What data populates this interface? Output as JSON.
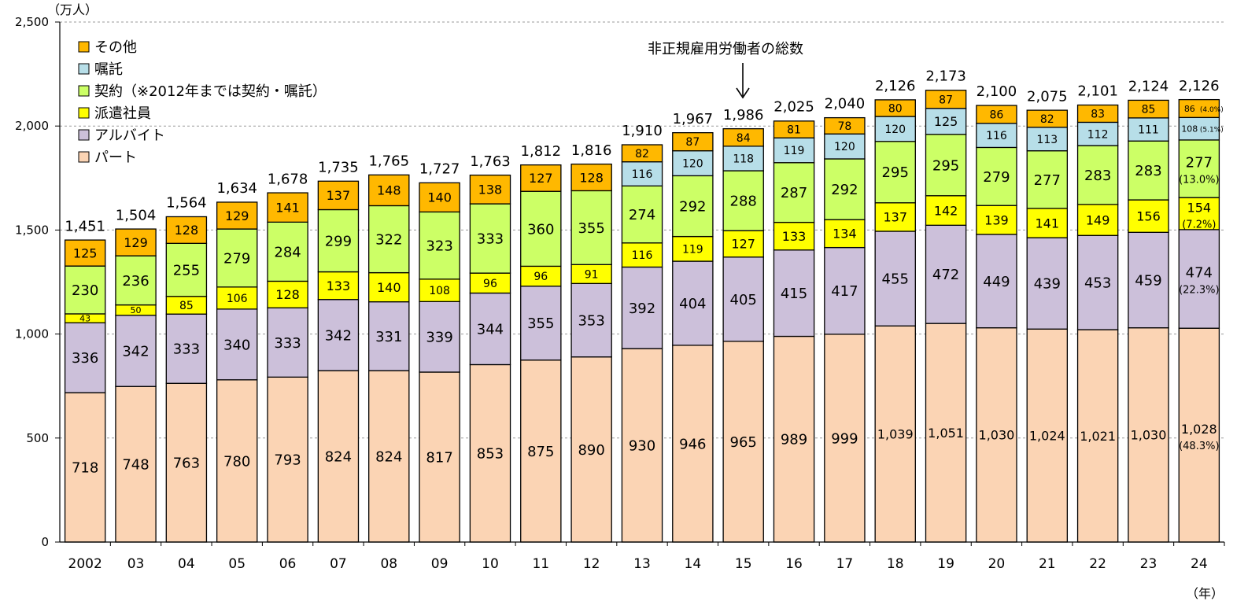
{
  "chart_data": {
    "type": "bar",
    "stacked": true,
    "y_unit": "（万人）",
    "x_unit": "（年）",
    "ylim": [
      0,
      2500
    ],
    "yticks": [
      0,
      500,
      1000,
      1500,
      2000,
      2500
    ],
    "ytick_labels": [
      "0",
      "500",
      "1,000",
      "1,500",
      "2,000",
      "2,500"
    ],
    "grid": "horizontal dashed",
    "legend_position": "top-left",
    "annotation": "非正規雇用労働者の総数",
    "annotation_target": "15",
    "categories": [
      "2002",
      "03",
      "04",
      "05",
      "06",
      "07",
      "08",
      "09",
      "10",
      "11",
      "12",
      "13",
      "14",
      "15",
      "16",
      "17",
      "18",
      "19",
      "20",
      "21",
      "22",
      "23",
      "24"
    ],
    "totals": [
      1451,
      1504,
      1564,
      1634,
      1678,
      1735,
      1765,
      1727,
      1763,
      1812,
      1816,
      1910,
      1967,
      1986,
      2025,
      2040,
      2126,
      2173,
      2100,
      2075,
      2101,
      2124,
      2126
    ],
    "total_labels": [
      "1,451",
      "1,504",
      "1,564",
      "1,634",
      "1,678",
      "1,735",
      "1,765",
      "1,727",
      "1,763",
      "1,812",
      "1,816",
      "1,910",
      "1,967",
      "1,986",
      "2,025",
      "2,040",
      "2,126",
      "2,173",
      "2,100",
      "2,075",
      "2,101",
      "2,124",
      "2,126"
    ],
    "series": [
      {
        "name": "パート",
        "color": "#FBD4B4",
        "values": [
          718,
          748,
          763,
          780,
          793,
          824,
          824,
          817,
          853,
          875,
          890,
          930,
          946,
          965,
          989,
          999,
          1039,
          1051,
          1030,
          1024,
          1021,
          1030,
          1028
        ],
        "labels": [
          "718",
          "748",
          "763",
          "780",
          "793",
          "824",
          "824",
          "817",
          "853",
          "875",
          "890",
          "930",
          "946",
          "965",
          "989",
          "999",
          "1,039",
          "1,051",
          "1,030",
          "1,024",
          "1,021",
          "1,030",
          "1,028"
        ],
        "last_share": "(48.3%)"
      },
      {
        "name": "アルバイト",
        "color": "#CCC0DA",
        "values": [
          336,
          342,
          333,
          340,
          333,
          342,
          331,
          339,
          344,
          355,
          353,
          392,
          404,
          405,
          415,
          417,
          455,
          472,
          449,
          439,
          453,
          459,
          474
        ],
        "labels": [
          "336",
          "342",
          "333",
          "340",
          "333",
          "342",
          "331",
          "339",
          "344",
          "355",
          "353",
          "392",
          "404",
          "405",
          "415",
          "417",
          "455",
          "472",
          "449",
          "439",
          "453",
          "459",
          "474"
        ],
        "last_share": "(22.3%)"
      },
      {
        "name": "派遣社員",
        "color": "#FFFF00",
        "values": [
          43,
          50,
          85,
          106,
          128,
          133,
          140,
          108,
          96,
          96,
          91,
          116,
          119,
          127,
          133,
          134,
          137,
          142,
          139,
          141,
          149,
          156,
          154
        ],
        "labels": [
          "43",
          "50",
          "85",
          "106",
          "128",
          "133",
          "140",
          "108",
          "96",
          "96",
          "91",
          "116",
          "119",
          "127",
          "133",
          "134",
          "137",
          "142",
          "139",
          "141",
          "149",
          "156",
          "154"
        ],
        "last_share": "(7.2%)"
      },
      {
        "name": "契約（※2012年までは契約・嘱託）",
        "color": "#CCFF66",
        "values": [
          230,
          236,
          255,
          279,
          284,
          299,
          322,
          323,
          333,
          360,
          355,
          274,
          292,
          288,
          287,
          292,
          295,
          295,
          279,
          277,
          283,
          283,
          277
        ],
        "labels": [
          "230",
          "236",
          "255",
          "279",
          "284",
          "299",
          "322",
          "323",
          "333",
          "360",
          "355",
          "274",
          "292",
          "288",
          "287",
          "292",
          "295",
          "295",
          "279",
          "277",
          "283",
          "283",
          "277"
        ],
        "last_share": "(13.0%)"
      },
      {
        "name": "嘱託",
        "color": "#B7DEE8",
        "values": [
          null,
          null,
          null,
          null,
          null,
          null,
          null,
          null,
          null,
          null,
          null,
          116,
          120,
          118,
          119,
          120,
          120,
          125,
          116,
          113,
          112,
          111,
          108
        ],
        "labels": [
          "",
          "",
          "",
          "",
          "",
          "",
          "",
          "",
          "",
          "",
          "",
          "116",
          "120",
          "118",
          "119",
          "120",
          "120",
          "125",
          "116",
          "113",
          "112",
          "111",
          "108"
        ],
        "last_share": "(5.1%)"
      },
      {
        "name": "その他",
        "color": "#FFB800",
        "values": [
          125,
          129,
          128,
          129,
          141,
          137,
          148,
          140,
          138,
          127,
          128,
          82,
          87,
          84,
          81,
          78,
          80,
          87,
          86,
          82,
          83,
          85,
          86
        ],
        "labels": [
          "125",
          "129",
          "128",
          "129",
          "141",
          "137",
          "148",
          "140",
          "138",
          "127",
          "128",
          "82",
          "87",
          "84",
          "81",
          "78",
          "80",
          "87",
          "86",
          "82",
          "83",
          "85",
          "86"
        ],
        "last_share": "(4.0%)"
      }
    ]
  }
}
